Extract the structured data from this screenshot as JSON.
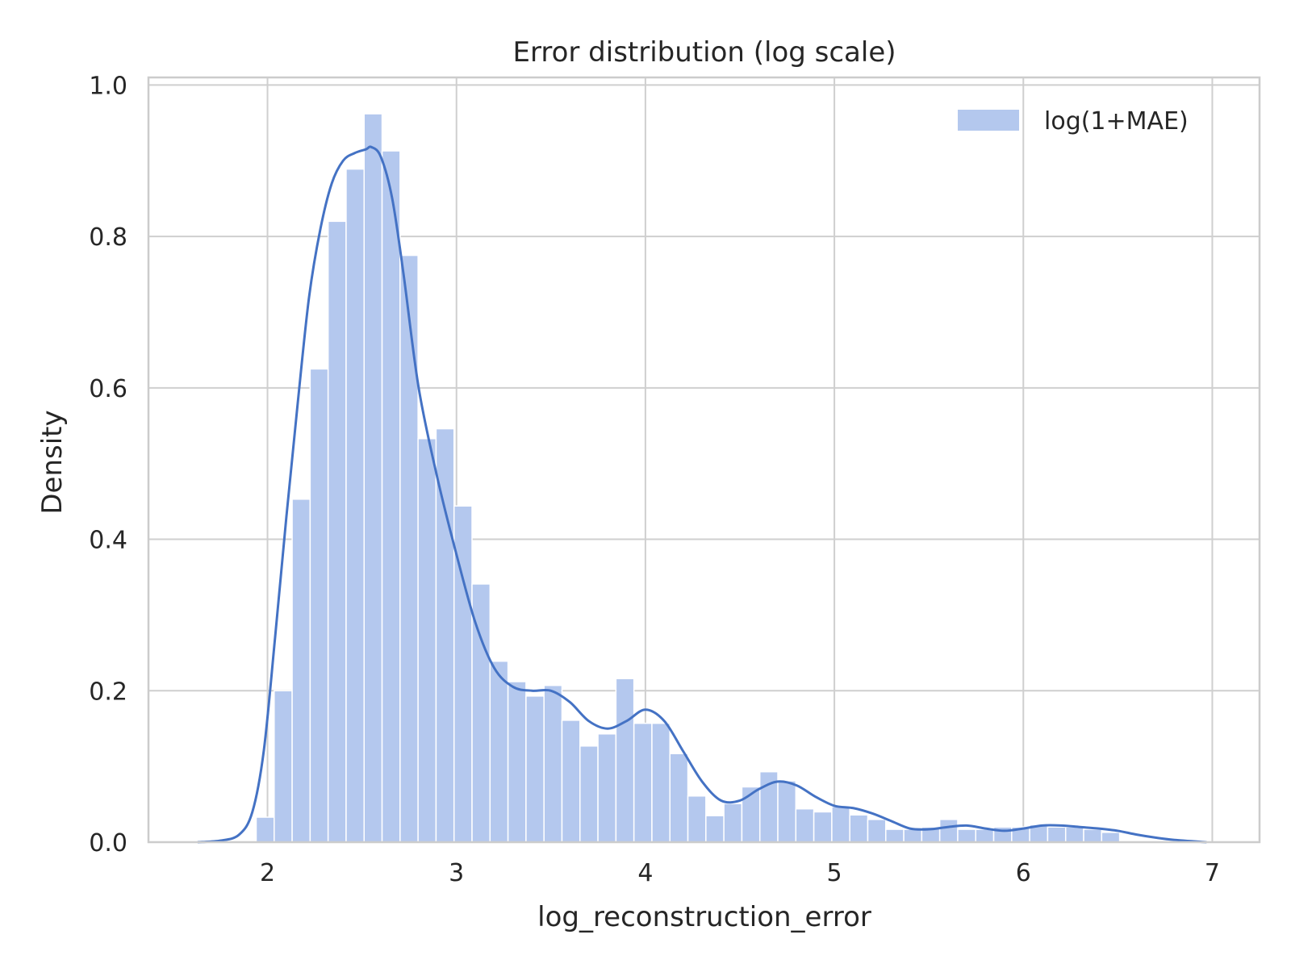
{
  "chart_data": {
    "type": "histogram",
    "title": "Error distribution (log scale)",
    "xlabel": "log_reconstruction_error",
    "ylabel": "Density",
    "xlim": [
      1.37,
      7.25
    ],
    "ylim": [
      0,
      1.01
    ],
    "xticks": [
      2,
      3,
      4,
      5,
      6,
      7
    ],
    "yticks": [
      0.0,
      0.2,
      0.4,
      0.6,
      0.8,
      1.0
    ],
    "xtick_labels": [
      "2",
      "3",
      "4",
      "5",
      "6",
      "7"
    ],
    "ytick_labels": [
      "0.0",
      "0.2",
      "0.4",
      "0.6",
      "0.8",
      "1.0"
    ],
    "grid": true,
    "legend": {
      "position": "top-right",
      "entries": [
        "log(1+MAE)"
      ]
    },
    "colors": {
      "bar": "#b4c8ee",
      "kde": "#4472c4",
      "grid": "#cfcfcf",
      "frame": "#cccccc"
    },
    "bins": {
      "start": 1.94,
      "width": 0.0952,
      "density": [
        0.033,
        0.2,
        0.453,
        0.625,
        0.82,
        0.889,
        0.962,
        0.913,
        0.775,
        0.533,
        0.546,
        0.444,
        0.341,
        0.239,
        0.212,
        0.193,
        0.207,
        0.161,
        0.127,
        0.143,
        0.216,
        0.157,
        0.157,
        0.117,
        0.061,
        0.035,
        0.051,
        0.073,
        0.093,
        0.081,
        0.044,
        0.04,
        0.047,
        0.036,
        0.03,
        0.017,
        0.017,
        0.02,
        0.03,
        0.017,
        0.017,
        0.02,
        0.02,
        0.023,
        0.02,
        0.02,
        0.017,
        0.013
      ]
    },
    "kde": {
      "name": "log(1+MAE)",
      "x": [
        1.63,
        1.75,
        1.85,
        1.92,
        1.98,
        2.04,
        2.1,
        2.16,
        2.22,
        2.28,
        2.34,
        2.4,
        2.46,
        2.52,
        2.55,
        2.6,
        2.66,
        2.72,
        2.8,
        2.9,
        3.0,
        3.1,
        3.2,
        3.3,
        3.4,
        3.5,
        3.6,
        3.7,
        3.8,
        3.9,
        4.0,
        4.1,
        4.2,
        4.3,
        4.4,
        4.5,
        4.6,
        4.7,
        4.8,
        4.9,
        5.0,
        5.1,
        5.2,
        5.3,
        5.4,
        5.5,
        5.6,
        5.7,
        5.8,
        5.9,
        6.0,
        6.1,
        6.2,
        6.3,
        6.4,
        6.5,
        6.6,
        6.7,
        6.8,
        6.97
      ],
      "y": [
        0.0,
        0.002,
        0.01,
        0.04,
        0.12,
        0.27,
        0.43,
        0.58,
        0.72,
        0.81,
        0.87,
        0.9,
        0.91,
        0.915,
        0.918,
        0.905,
        0.85,
        0.75,
        0.6,
        0.48,
        0.38,
        0.29,
        0.23,
        0.205,
        0.2,
        0.2,
        0.185,
        0.16,
        0.15,
        0.16,
        0.175,
        0.16,
        0.12,
        0.08,
        0.055,
        0.055,
        0.07,
        0.08,
        0.075,
        0.06,
        0.048,
        0.045,
        0.038,
        0.028,
        0.018,
        0.017,
        0.02,
        0.022,
        0.018,
        0.015,
        0.018,
        0.022,
        0.022,
        0.02,
        0.018,
        0.015,
        0.01,
        0.006,
        0.003,
        0.0
      ]
    }
  }
}
